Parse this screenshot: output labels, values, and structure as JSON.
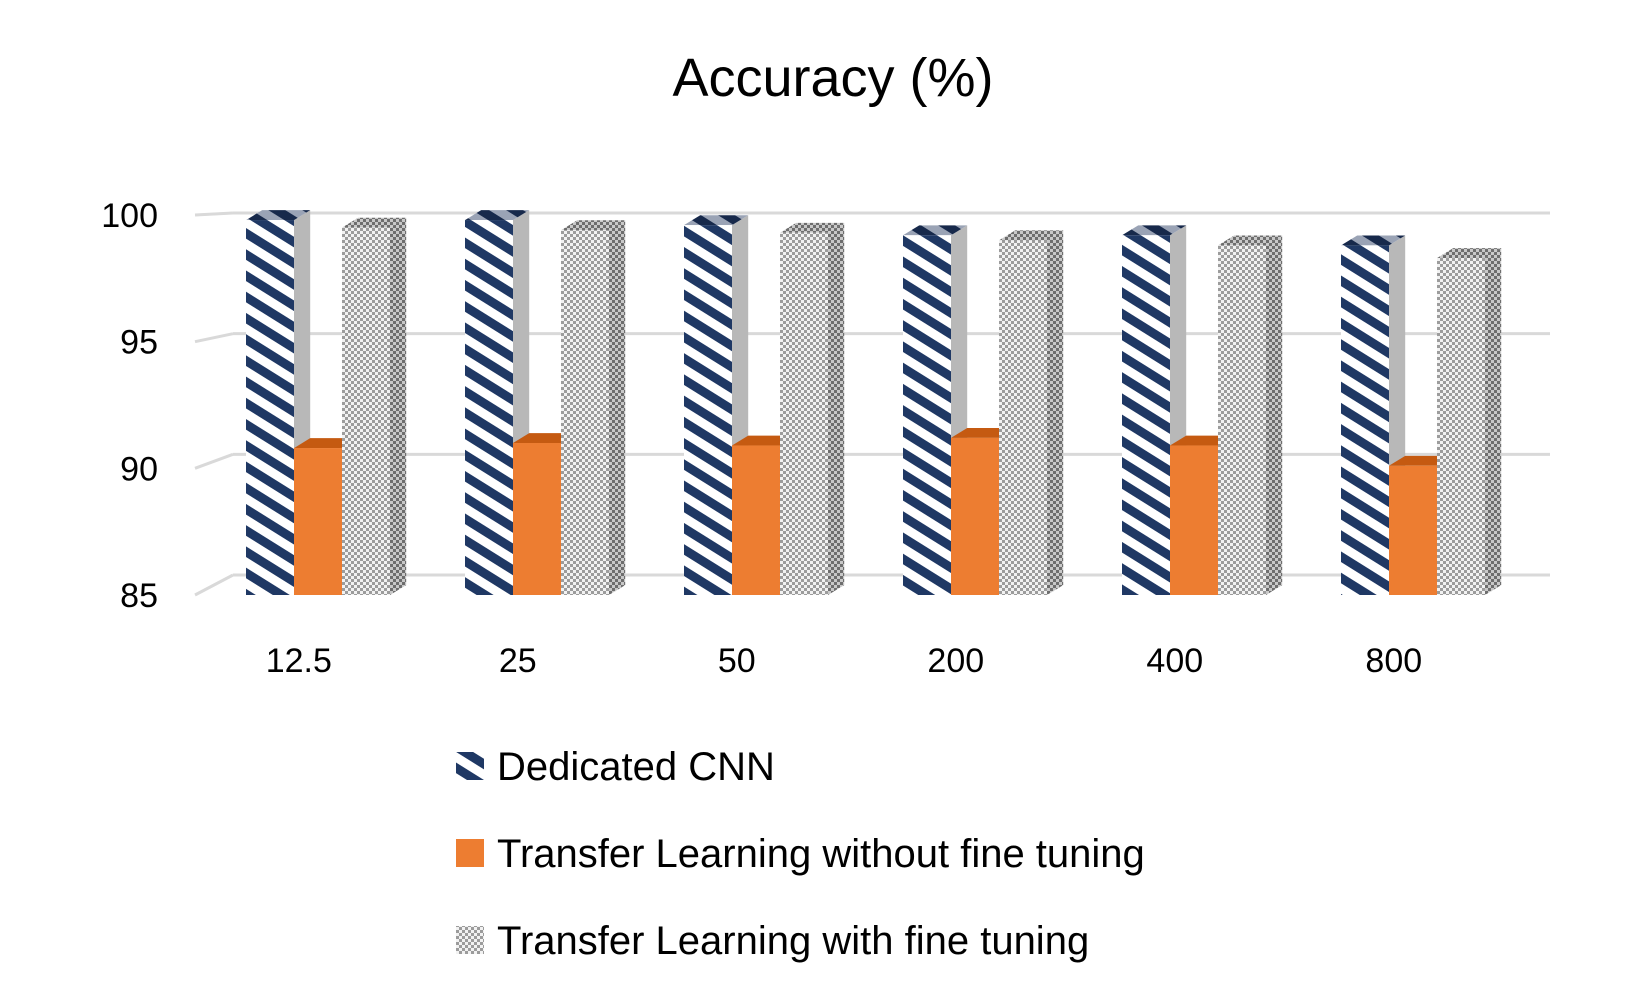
{
  "chart_data": {
    "type": "bar",
    "title": "Accuracy (%)",
    "xlabel": "",
    "ylabel": "",
    "categories": [
      "12.5",
      "25",
      "50",
      "200",
      "400",
      "800"
    ],
    "ylim": [
      85,
      100
    ],
    "yticks": [
      "85",
      "90",
      "95",
      "100"
    ],
    "grid": true,
    "legend_position": "bottom",
    "series": [
      {
        "name": "Dedicated CNN",
        "values": [
          99.8,
          99.8,
          99.6,
          99.2,
          99.2,
          98.8
        ],
        "pattern": "diagonal-stripes",
        "color": "#1f3864"
      },
      {
        "name": "Transfer Learning without fine tuning",
        "values": [
          90.8,
          91.0,
          90.9,
          91.2,
          90.9,
          90.1
        ],
        "pattern": "solid",
        "color": "#ed7d31"
      },
      {
        "name": "Transfer Learning with fine tuning",
        "values": [
          99.5,
          99.4,
          99.3,
          99.0,
          98.8,
          98.3
        ],
        "pattern": "dotted-grid",
        "color": "#a6a6a6"
      }
    ]
  }
}
